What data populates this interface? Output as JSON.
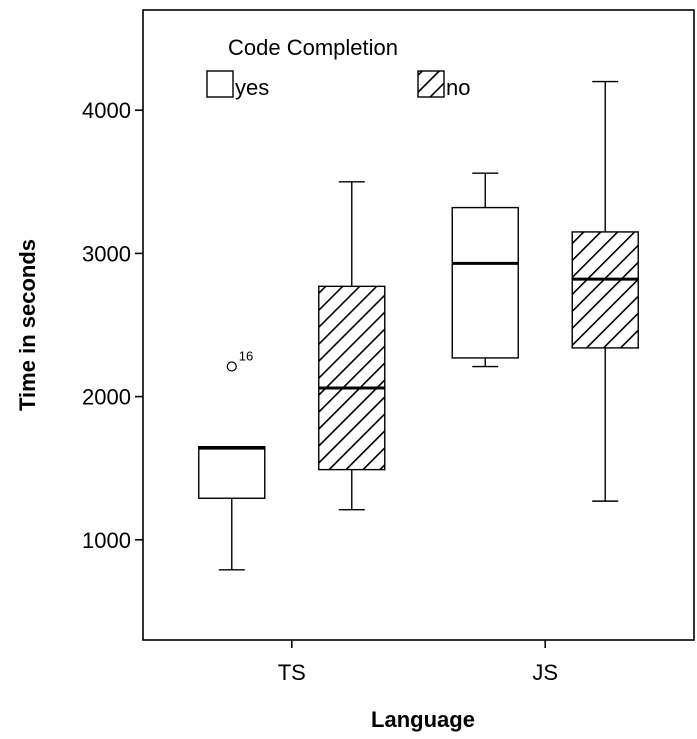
{
  "chart_data": {
    "type": "boxplot",
    "xlabel": "Language",
    "ylabel": "Time in seconds",
    "categories": [
      "TS",
      "JS"
    ],
    "yticks": [
      1000,
      2000,
      3000,
      4000
    ],
    "ylim": [
      300,
      4700
    ],
    "legend": {
      "title": "Code Completion",
      "placement": "top-left",
      "entries": [
        {
          "label": "yes",
          "fill": "plain"
        },
        {
          "label": "no",
          "fill": "hatched"
        }
      ]
    },
    "series": [
      {
        "name": "yes",
        "fill": "plain",
        "boxes": [
          {
            "category": "TS",
            "min": 790,
            "q1": 1290,
            "median": 1640,
            "q3": 1650,
            "max": 1650,
            "outliers": [
              {
                "value": 2210,
                "label": "16"
              }
            ]
          },
          {
            "category": "JS",
            "min": 2210,
            "q1": 2270,
            "median": 2930,
            "q3": 3320,
            "max": 3560,
            "outliers": []
          }
        ]
      },
      {
        "name": "no",
        "fill": "hatched",
        "boxes": [
          {
            "category": "TS",
            "min": 1210,
            "q1": 1490,
            "median": 2060,
            "q3": 2770,
            "max": 3500,
            "outliers": []
          },
          {
            "category": "JS",
            "min": 1270,
            "q1": 2340,
            "median": 2820,
            "q3": 3150,
            "max": 4200,
            "outliers": []
          }
        ]
      }
    ],
    "grid": false
  }
}
